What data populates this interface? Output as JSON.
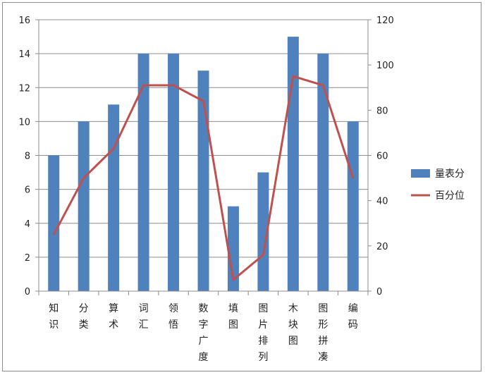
{
  "chart_data": {
    "type": "bar",
    "categories": [
      "知识",
      "分类",
      "算术",
      "词汇",
      "领悟",
      "数字广度",
      "填图",
      "图片排列",
      "木块图",
      "图形拼凑",
      "编码"
    ],
    "series": [
      {
        "name": "量表分",
        "type": "bar",
        "axis": "left",
        "color": "#4f81bd",
        "values": [
          8,
          10,
          11,
          14,
          14,
          13,
          5,
          7,
          15,
          14,
          10
        ]
      },
      {
        "name": "百分位",
        "type": "line",
        "axis": "right",
        "color": "#c0504d",
        "values": [
          25,
          50,
          63,
          91,
          91,
          84,
          5,
          16,
          95,
          91,
          50
        ]
      }
    ],
    "y_left": {
      "min": 0,
      "max": 16,
      "ticks": [
        0,
        2,
        4,
        6,
        8,
        10,
        12,
        14,
        16
      ]
    },
    "y_right": {
      "min": 0,
      "max": 120,
      "ticks": [
        0,
        20,
        40,
        60,
        80,
        100,
        120
      ]
    },
    "grid": true,
    "legend": "right"
  }
}
